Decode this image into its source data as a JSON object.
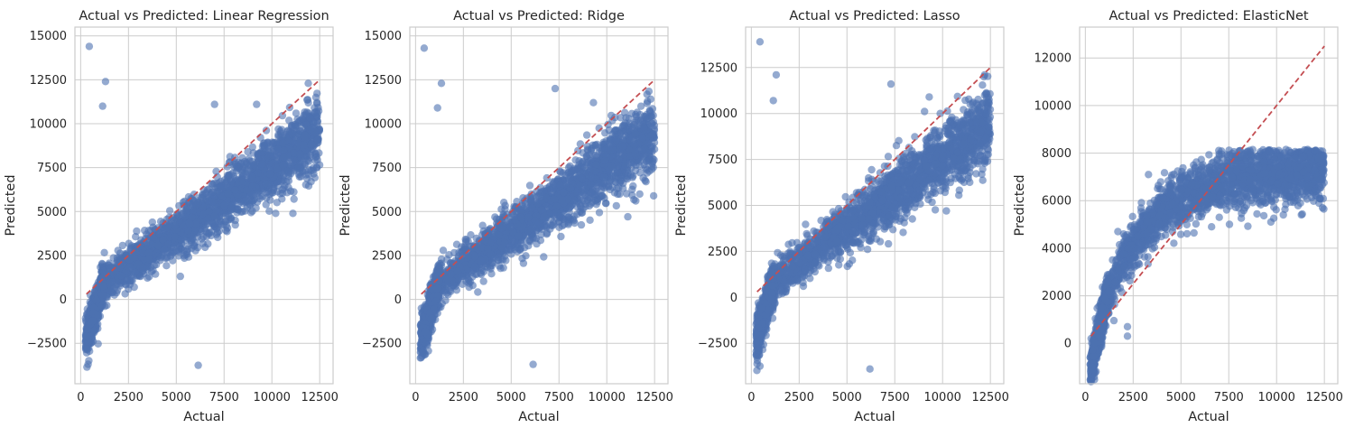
{
  "figure": {
    "marker_color": "#4c72b0",
    "reference_line_color": "#c44e52",
    "grid_color": "#cccccc"
  },
  "chart_data": [
    {
      "type": "scatter",
      "title": "Actual vs Predicted: Linear Regression",
      "xlabel": "Actual",
      "ylabel": "Predicted",
      "xlim": [
        -300,
        13200
      ],
      "ylim": [
        -4800,
        15500
      ],
      "xticks": [
        0,
        2500,
        5000,
        7500,
        10000,
        12500
      ],
      "yticks": [
        -2500,
        0,
        2500,
        5000,
        7500,
        10000,
        12500,
        15000
      ],
      "grid": true,
      "reference_line": {
        "x": [
          300,
          12500
        ],
        "y": [
          300,
          12500
        ]
      },
      "model": "linear",
      "points": [
        [
          450,
          14400
        ],
        [
          1300,
          12400
        ],
        [
          1150,
          11000
        ],
        [
          6150,
          -3750
        ],
        [
          6600,
          3800
        ],
        [
          11900,
          12300
        ],
        [
          12300,
          11500
        ],
        [
          10200,
          4900
        ],
        [
          12350,
          7500
        ],
        [
          12050,
          6700
        ],
        [
          9200,
          11100
        ],
        [
          7000,
          11100
        ],
        [
          11100,
          4900
        ],
        [
          2800,
          700
        ],
        [
          5800,
          2900
        ]
      ]
    },
    {
      "type": "scatter",
      "title": "Actual vs Predicted: Ridge",
      "xlabel": "Actual",
      "ylabel": "Predicted",
      "xlim": [
        -300,
        13200
      ],
      "ylim": [
        -4800,
        15500
      ],
      "xticks": [
        0,
        2500,
        5000,
        7500,
        10000,
        12500
      ],
      "yticks": [
        -2500,
        0,
        2500,
        5000,
        7500,
        10000,
        12500,
        15000
      ],
      "grid": true,
      "reference_line": {
        "x": [
          300,
          12500
        ],
        "y": [
          300,
          12500
        ]
      },
      "model": "linear",
      "points": [
        [
          450,
          14300
        ],
        [
          1350,
          12300
        ],
        [
          1150,
          10900
        ],
        [
          6150,
          -3700
        ],
        [
          7300,
          12000
        ],
        [
          9300,
          11200
        ],
        [
          12300,
          11400
        ],
        [
          12350,
          7400
        ],
        [
          12050,
          6700
        ],
        [
          11100,
          4700
        ],
        [
          2800,
          700
        ],
        [
          6000,
          3400
        ]
      ]
    },
    {
      "type": "scatter",
      "title": "Actual vs Predicted: Lasso",
      "xlabel": "Actual",
      "ylabel": "Predicted",
      "xlim": [
        -300,
        13200
      ],
      "ylim": [
        -4700,
        14700
      ],
      "xticks": [
        0,
        2500,
        5000,
        7500,
        10000,
        12500
      ],
      "yticks": [
        -2500,
        0,
        2500,
        5000,
        7500,
        10000,
        12500
      ],
      "grid": true,
      "reference_line": {
        "x": [
          300,
          12500
        ],
        "y": [
          300,
          12500
        ]
      },
      "model": "linear",
      "points": [
        [
          450,
          13900
        ],
        [
          1300,
          12100
        ],
        [
          1150,
          10700
        ],
        [
          6200,
          -3900
        ],
        [
          7300,
          11600
        ],
        [
          9300,
          10900
        ],
        [
          12200,
          12100
        ],
        [
          12350,
          7400
        ],
        [
          12050,
          6700
        ],
        [
          10200,
          4700
        ],
        [
          2700,
          800
        ]
      ]
    },
    {
      "type": "scatter",
      "title": "Actual vs Predicted: ElasticNet",
      "xlabel": "Actual",
      "ylabel": "Predicted",
      "xlim": [
        -300,
        13200
      ],
      "ylim": [
        -1700,
        13300
      ],
      "xticks": [
        0,
        2500,
        5000,
        7500,
        10000,
        12500
      ],
      "yticks": [
        0,
        2000,
        4000,
        6000,
        8000,
        10000,
        12000
      ],
      "grid": true,
      "reference_line": {
        "x": [
          300,
          12500
        ],
        "y": [
          300,
          12500
        ]
      },
      "model": "saturating",
      "points": [
        [
          2200,
          300
        ],
        [
          2200,
          700
        ],
        [
          3300,
          7100
        ],
        [
          8100,
          8100
        ],
        [
          12000,
          8100
        ],
        [
          12400,
          5700
        ],
        [
          11300,
          5400
        ],
        [
          6600,
          4900
        ],
        [
          9700,
          5100
        ],
        [
          1700,
          4700
        ]
      ]
    }
  ]
}
